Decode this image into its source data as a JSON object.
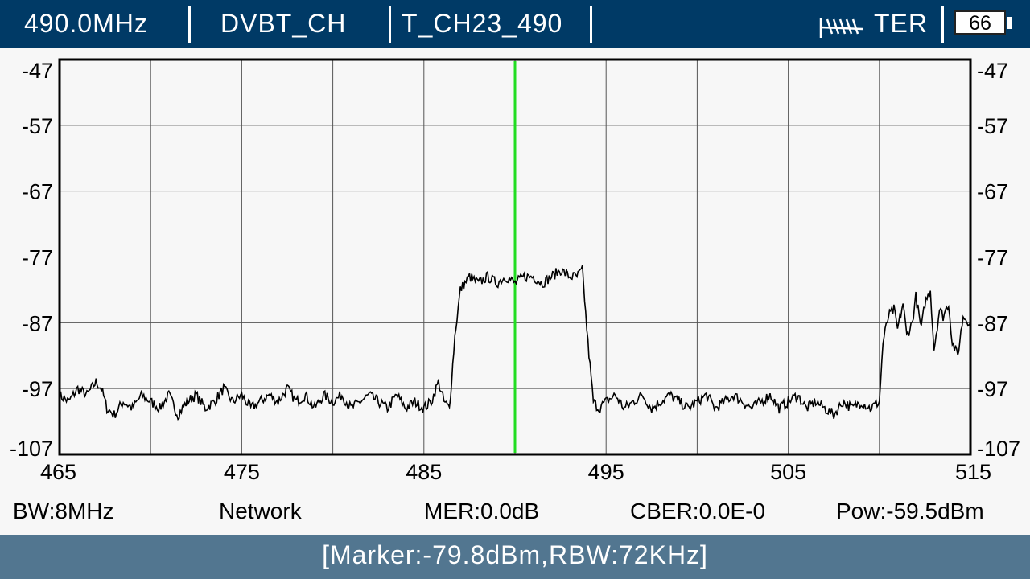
{
  "header": {
    "frequency": "490.0MHz",
    "mode": "DVBT_CH",
    "channel": "T_CH23_490",
    "signal_type": "TER",
    "battery": "66",
    "icons": [
      "antenna-icon",
      "battery-icon"
    ]
  },
  "info": {
    "bw": "BW:8MHz",
    "network": "Network",
    "mer": "MER:0.0dB",
    "cber": "CBER:0.0E-0",
    "pow": "Pow:-59.5dBm"
  },
  "status": "[Marker:-79.8dBm,RBW:72KHz]",
  "colors": {
    "header_bg": "#003a66",
    "status_bg": "#527690",
    "marker": "#22dd22",
    "trace": "#000000"
  },
  "chart_data": {
    "type": "line",
    "title": "",
    "xlabel": "",
    "ylabel": "",
    "xlim": [
      465,
      515
    ],
    "ylim": [
      -107,
      -47
    ],
    "x_ticks": [
      465,
      475,
      485,
      495,
      505,
      515
    ],
    "y_ticks": [
      -47,
      -57,
      -67,
      -77,
      -87,
      -97,
      -107
    ],
    "grid": true,
    "marker_x": 490,
    "series": [
      {
        "x": [
          465,
          465.5,
          466,
          466.5,
          467,
          467.3,
          467.6,
          468,
          468.5,
          469,
          469.5,
          470,
          470.5,
          471,
          471.5,
          472,
          472.5,
          473,
          473.5,
          474,
          474.5,
          475,
          475.5,
          476,
          476.5,
          477,
          477.5,
          478,
          478.5,
          479,
          479.5,
          480,
          480.5,
          481,
          481.5,
          482,
          482.5,
          483,
          483.5,
          484,
          484.5,
          485,
          485.4,
          485.8,
          486.1,
          486.4,
          486.7,
          487,
          487.5,
          488,
          488.5,
          489,
          489.5,
          490,
          490.5,
          491,
          491.5,
          492,
          492.5,
          493,
          493.4,
          493.7,
          494,
          494.3,
          494.6,
          495,
          495.5,
          496,
          496.5,
          497,
          497.5,
          498,
          498.5,
          499,
          499.5,
          500,
          500.5,
          501,
          501.5,
          502,
          502.5,
          503,
          503.5,
          504,
          504.5,
          505,
          505.5,
          506,
          506.5,
          507,
          507.5,
          508,
          508.5,
          509,
          509.5,
          510,
          510.2,
          510.5,
          510.8,
          511,
          511.3,
          511.5,
          511.8,
          512,
          512.3,
          512.5,
          512.8,
          513,
          513.3,
          513.5,
          513.8,
          514,
          514.3,
          514.6,
          515
        ],
        "y": [
          -98,
          -99,
          -97,
          -98,
          -96,
          -97,
          -100,
          -101,
          -99,
          -100,
          -98,
          -99,
          -100,
          -98,
          -101,
          -99,
          -98,
          -100,
          -99,
          -97,
          -99,
          -98,
          -100,
          -99,
          -98,
          -99,
          -97,
          -99,
          -98,
          -100,
          -98,
          -99,
          -98,
          -100,
          -99,
          -98,
          -99,
          -100,
          -98,
          -100,
          -99,
          -100,
          -99,
          -96,
          -99,
          -100,
          -89,
          -82,
          -80,
          -81,
          -80,
          -81,
          -80,
          -81,
          -80,
          -80,
          -81,
          -80,
          -79,
          -80,
          -80,
          -79,
          -90,
          -99,
          -100,
          -99,
          -98,
          -100,
          -99,
          -98,
          -100,
          -99,
          -98,
          -99,
          -100,
          -99,
          -98,
          -100,
          -99,
          -98,
          -99,
          -100,
          -99,
          -98,
          -100,
          -99,
          -98,
          -100,
          -99,
          -100,
          -101,
          -99,
          -100,
          -99,
          -100,
          -99,
          -90,
          -86,
          -85,
          -88,
          -84,
          -89,
          -87,
          -83,
          -88,
          -84,
          -82,
          -91,
          -85,
          -86,
          -84,
          -90,
          -92,
          -86,
          -87
        ]
      }
    ]
  }
}
